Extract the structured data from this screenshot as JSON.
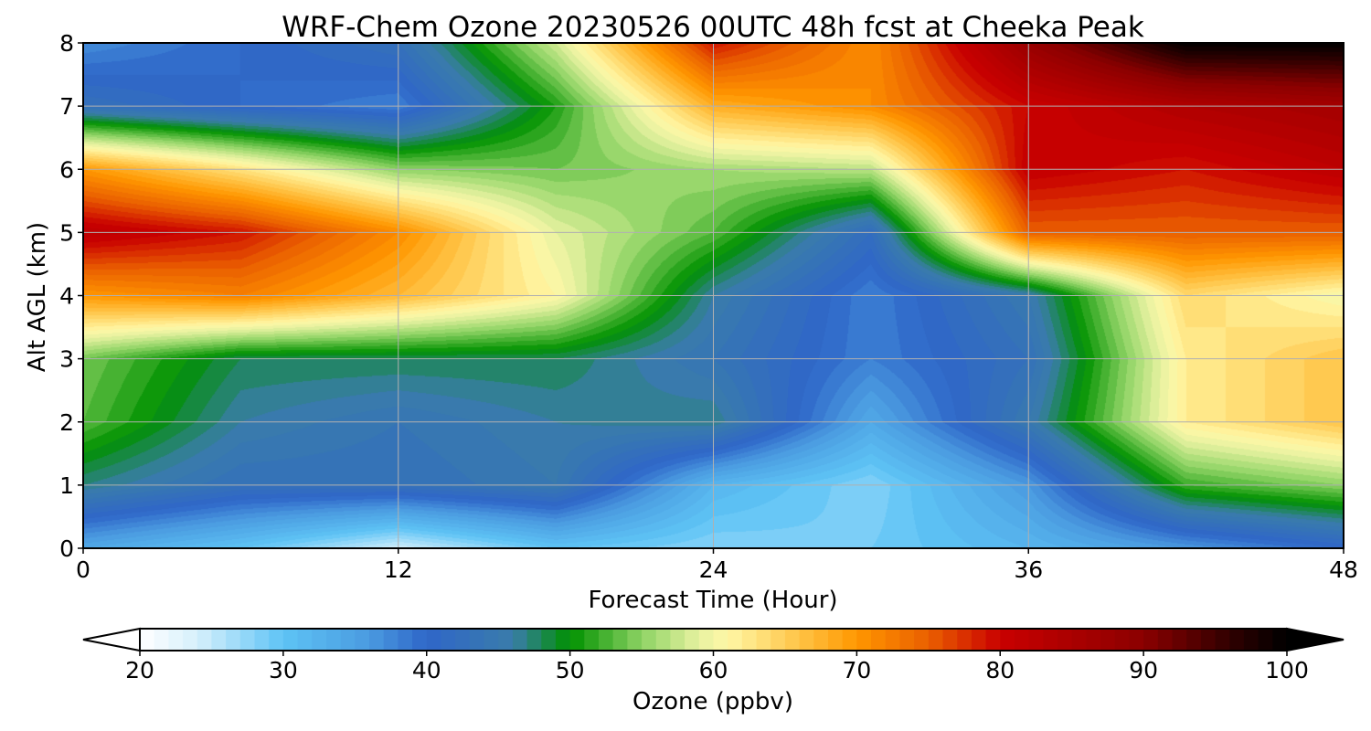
{
  "chart_data": {
    "type": "heatmap",
    "title": "WRF-Chem Ozone  20230526 00UTC 48h fcst at Cheeka Peak",
    "xlabel": "Forecast Time (Hour)",
    "ylabel": "Alt AGL (km)",
    "xlim": [
      0,
      48
    ],
    "ylim": [
      0,
      8
    ],
    "x_ticks": [
      "0",
      "12",
      "24",
      "36",
      "48"
    ],
    "y_ticks": [
      "0",
      "1",
      "2",
      "3",
      "4",
      "5",
      "6",
      "7",
      "8"
    ],
    "grid": true,
    "x": [
      0,
      6,
      12,
      18,
      24,
      30,
      36,
      42,
      48
    ],
    "y": [
      0,
      1,
      2,
      3,
      4,
      5,
      6,
      7,
      8
    ],
    "z": [
      [
        34,
        30,
        24,
        30,
        28,
        29,
        32,
        36,
        40
      ],
      [
        47,
        43,
        43,
        45,
        32,
        28,
        36,
        52,
        55
      ],
      [
        53,
        46,
        44,
        46,
        47,
        34,
        45,
        62,
        66
      ],
      [
        54,
        48,
        48,
        48,
        44,
        38,
        43,
        62,
        66
      ],
      [
        70,
        72,
        67,
        61,
        46,
        38,
        45,
        64,
        60
      ],
      [
        82,
        79,
        71,
        59,
        53,
        42,
        75,
        75,
        75
      ],
      [
        70,
        63,
        55,
        54,
        56,
        57,
        81,
        79,
        82
      ],
      [
        43,
        40,
        38,
        51,
        68,
        71,
        80,
        84,
        86
      ],
      [
        37,
        40,
        43,
        58,
        79,
        71,
        88,
        100,
        100
      ]
    ],
    "colorbar": {
      "label": "Ozone  (ppbv)",
      "vmin": 20,
      "vmax": 100,
      "ticks": [
        "20",
        "30",
        "40",
        "50",
        "60",
        "70",
        "80",
        "90",
        "100"
      ],
      "extend": "both",
      "under_color": "#ffffff",
      "over_color": "#000000",
      "color_stops": [
        [
          20,
          "#ffffff"
        ],
        [
          24,
          "#d6f0fc"
        ],
        [
          30,
          "#5ec3f5"
        ],
        [
          36,
          "#4a9be0"
        ],
        [
          40,
          "#2f66c8"
        ],
        [
          46,
          "#3a7cab"
        ],
        [
          50,
          "#009100"
        ],
        [
          55,
          "#8ed364"
        ],
        [
          59,
          "#e7f2a0"
        ],
        [
          61,
          "#fff7a6"
        ],
        [
          66,
          "#ffc446"
        ],
        [
          70,
          "#ff9700"
        ],
        [
          75,
          "#ea5f00"
        ],
        [
          80,
          "#c90000"
        ],
        [
          90,
          "#8b0000"
        ],
        [
          96,
          "#300000"
        ],
        [
          100,
          "#000000"
        ]
      ]
    }
  }
}
